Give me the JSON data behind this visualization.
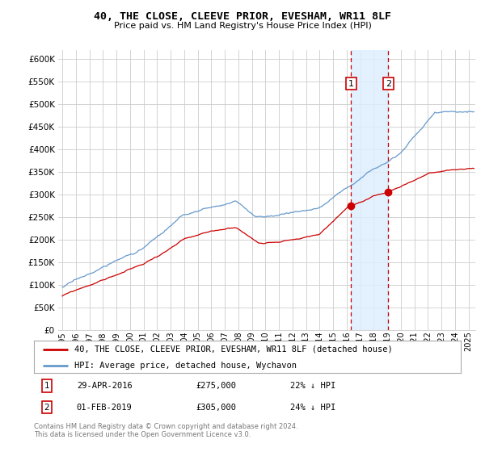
{
  "title": "40, THE CLOSE, CLEEVE PRIOR, EVESHAM, WR11 8LF",
  "subtitle": "Price paid vs. HM Land Registry's House Price Index (HPI)",
  "ylim": [
    0,
    620000
  ],
  "yticks": [
    0,
    50000,
    100000,
    150000,
    200000,
    250000,
    300000,
    350000,
    400000,
    450000,
    500000,
    550000,
    600000
  ],
  "xmin_year": 1995.0,
  "xmax_year": 2025.5,
  "transaction1": {
    "date_num": 2016.33,
    "price": 275000,
    "label": "1",
    "date_str": "29-APR-2016",
    "pct": "22% ↓ HPI"
  },
  "transaction2": {
    "date_num": 2019.08,
    "price": 305000,
    "label": "2",
    "date_str": "01-FEB-2019",
    "pct": "24% ↓ HPI"
  },
  "property_line_color": "#cc0000",
  "hpi_line_color": "#6699cc",
  "background_color": "#ffffff",
  "grid_color": "#cccccc",
  "transaction_vline_color": "#cc0000",
  "transaction_box_color": "#cc0000",
  "shaded_region_color": "#ddeeff",
  "legend_label_property": "40, THE CLOSE, CLEEVE PRIOR, EVESHAM, WR11 8LF (detached house)",
  "legend_label_hpi": "HPI: Average price, detached house, Wychavon",
  "footer_text": "Contains HM Land Registry data © Crown copyright and database right 2024.\nThis data is licensed under the Open Government Licence v3.0.",
  "xtick_years": [
    1995,
    1996,
    1997,
    1998,
    1999,
    2000,
    2001,
    2002,
    2003,
    2004,
    2005,
    2006,
    2007,
    2008,
    2009,
    2010,
    2011,
    2012,
    2013,
    2014,
    2015,
    2016,
    2017,
    2018,
    2019,
    2020,
    2021,
    2022,
    2023,
    2024,
    2025
  ]
}
